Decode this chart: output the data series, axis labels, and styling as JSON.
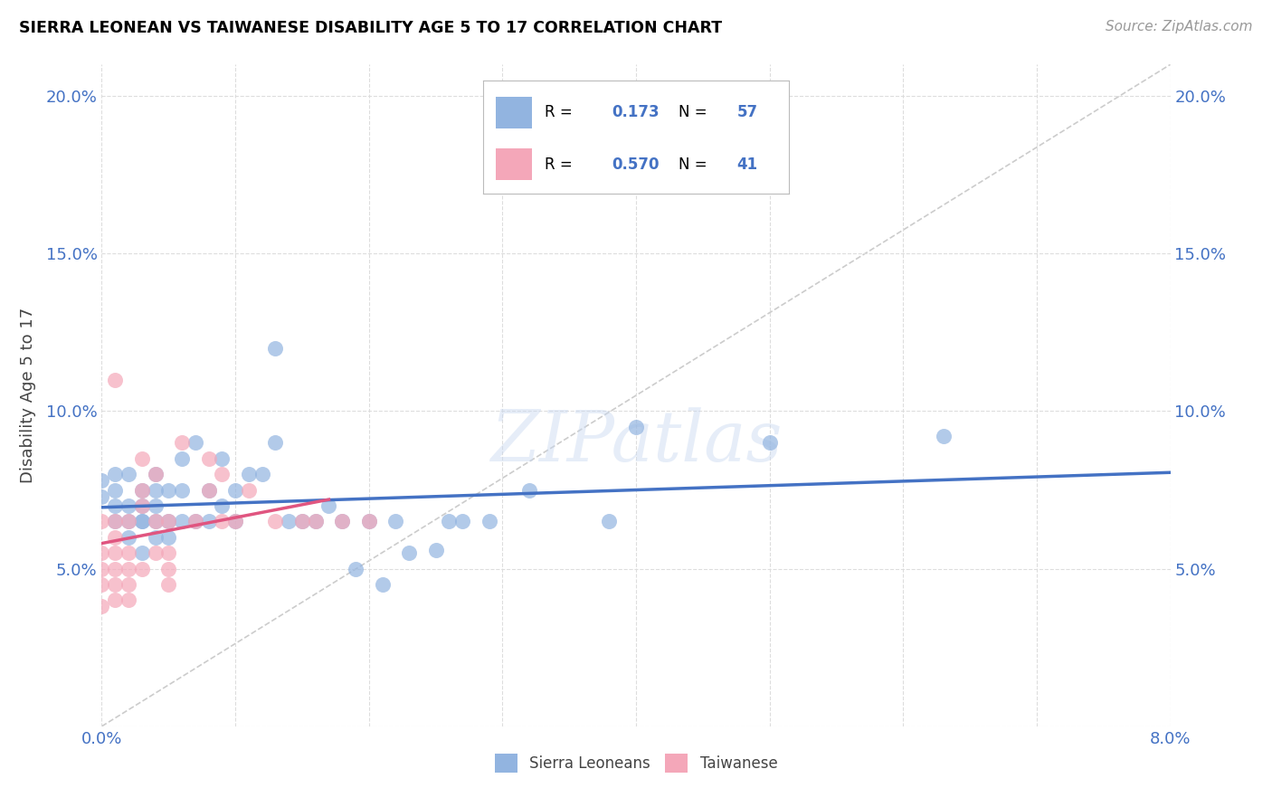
{
  "title": "SIERRA LEONEAN VS TAIWANESE DISABILITY AGE 5 TO 17 CORRELATION CHART",
  "source": "Source: ZipAtlas.com",
  "ylabel": "Disability Age 5 to 17",
  "xlim": [
    0.0,
    0.08
  ],
  "ylim": [
    0.0,
    0.21
  ],
  "xtick_vals": [
    0.0,
    0.01,
    0.02,
    0.03,
    0.04,
    0.05,
    0.06,
    0.07,
    0.08
  ],
  "xtick_labels": [
    "0.0%",
    "",
    "",
    "",
    "",
    "",
    "",
    "",
    "8.0%"
  ],
  "ytick_vals": [
    0.0,
    0.05,
    0.1,
    0.15,
    0.2
  ],
  "ytick_labels_left": [
    "",
    "5.0%",
    "10.0%",
    "15.0%",
    "20.0%"
  ],
  "ytick_labels_right": [
    "",
    "5.0%",
    "10.0%",
    "15.0%",
    "20.0%"
  ],
  "sierra_leone_R": 0.173,
  "sierra_leone_N": 57,
  "taiwanese_R": 0.57,
  "taiwanese_N": 41,
  "sierra_leone_color": "#92b4e0",
  "taiwanese_color": "#f4a7b9",
  "sierra_leone_line_color": "#4472c4",
  "taiwanese_line_color": "#e05580",
  "diagonal_color": "#cccccc",
  "grid_color": "#dddddd",
  "tick_color": "#4472c4",
  "sierra_leone_x": [
    0.0,
    0.0,
    0.001,
    0.001,
    0.001,
    0.001,
    0.002,
    0.002,
    0.002,
    0.002,
    0.003,
    0.003,
    0.003,
    0.003,
    0.003,
    0.004,
    0.004,
    0.004,
    0.004,
    0.004,
    0.005,
    0.005,
    0.005,
    0.006,
    0.006,
    0.006,
    0.007,
    0.007,
    0.008,
    0.008,
    0.009,
    0.009,
    0.01,
    0.01,
    0.011,
    0.012,
    0.013,
    0.013,
    0.014,
    0.015,
    0.016,
    0.017,
    0.018,
    0.019,
    0.02,
    0.021,
    0.022,
    0.023,
    0.025,
    0.026,
    0.027,
    0.029,
    0.032,
    0.038,
    0.04,
    0.05,
    0.063
  ],
  "sierra_leone_y": [
    0.073,
    0.078,
    0.065,
    0.07,
    0.075,
    0.08,
    0.06,
    0.065,
    0.07,
    0.08,
    0.055,
    0.065,
    0.065,
    0.07,
    0.075,
    0.06,
    0.065,
    0.07,
    0.075,
    0.08,
    0.06,
    0.065,
    0.075,
    0.065,
    0.075,
    0.085,
    0.065,
    0.09,
    0.075,
    0.065,
    0.07,
    0.085,
    0.065,
    0.075,
    0.08,
    0.08,
    0.09,
    0.12,
    0.065,
    0.065,
    0.065,
    0.07,
    0.065,
    0.05,
    0.065,
    0.045,
    0.065,
    0.055,
    0.056,
    0.065,
    0.065,
    0.065,
    0.075,
    0.065,
    0.095,
    0.09,
    0.092
  ],
  "taiwanese_x": [
    0.0,
    0.0,
    0.0,
    0.0,
    0.0,
    0.001,
    0.001,
    0.001,
    0.001,
    0.001,
    0.001,
    0.001,
    0.002,
    0.002,
    0.002,
    0.002,
    0.002,
    0.003,
    0.003,
    0.003,
    0.003,
    0.004,
    0.004,
    0.004,
    0.005,
    0.005,
    0.005,
    0.005,
    0.006,
    0.007,
    0.008,
    0.008,
    0.009,
    0.009,
    0.01,
    0.011,
    0.013,
    0.015,
    0.016,
    0.018,
    0.02
  ],
  "taiwanese_y": [
    0.038,
    0.045,
    0.05,
    0.055,
    0.065,
    0.04,
    0.045,
    0.05,
    0.055,
    0.06,
    0.065,
    0.11,
    0.04,
    0.045,
    0.05,
    0.055,
    0.065,
    0.05,
    0.07,
    0.075,
    0.085,
    0.055,
    0.065,
    0.08,
    0.045,
    0.05,
    0.055,
    0.065,
    0.09,
    0.065,
    0.075,
    0.085,
    0.065,
    0.08,
    0.065,
    0.075,
    0.065,
    0.065,
    0.065,
    0.065,
    0.065
  ]
}
